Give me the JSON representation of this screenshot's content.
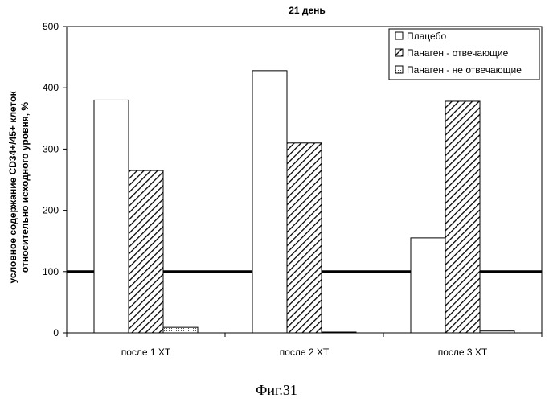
{
  "chart_data": {
    "type": "bar",
    "title": "21 день",
    "ylabel_lines": [
      "условное содержание CD34+/45+ клеток",
      "относительно исходного уровня, %"
    ],
    "xlabel": "",
    "categories": [
      "после 1 ХТ",
      "после 2 ХТ",
      "после 3 ХТ"
    ],
    "series": [
      {
        "name": "Плацебо",
        "values": [
          380,
          428,
          155
        ],
        "pattern": "white"
      },
      {
        "name": "Панаген - отвечающие",
        "values": [
          265,
          310,
          378
        ],
        "pattern": "hatch"
      },
      {
        "name": "Панаген - не отвечающие",
        "values": [
          9,
          0,
          3
        ],
        "pattern": "dots"
      }
    ],
    "ylim": [
      0,
      500
    ],
    "yticks": [
      "0",
      "100",
      "200",
      "300",
      "400",
      "500"
    ],
    "reference_line": 100,
    "legend_position": "top-right",
    "grid": false
  },
  "caption": "Фиг.31"
}
